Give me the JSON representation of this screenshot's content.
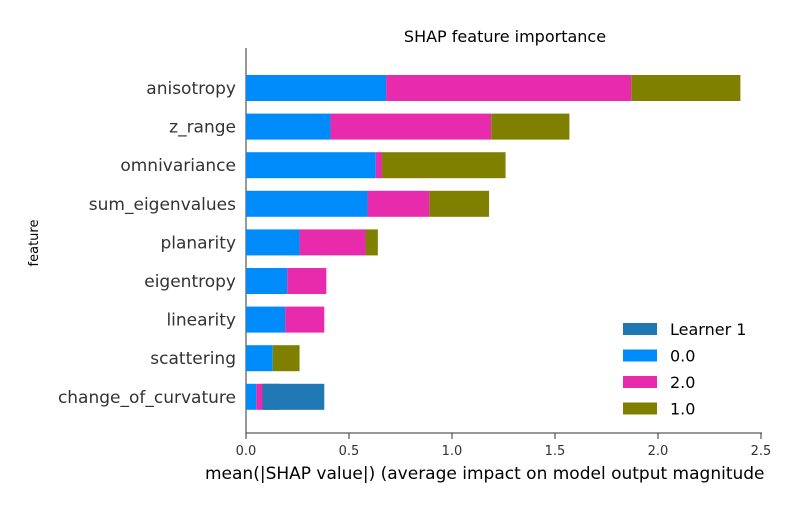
{
  "chart_data": {
    "type": "bar",
    "orientation": "horizontal",
    "stacked": true,
    "title": "SHAP feature importance",
    "xlabel": "mean(|SHAP value|) (average impact on model output magnitude",
    "ylabel": "feature",
    "xlim": [
      0,
      2.5
    ],
    "xticks": [
      "0.0",
      "0.5",
      "1.0",
      "1.5",
      "2.0",
      "2.5"
    ],
    "categories": [
      "anisotropy",
      "z_range",
      "omnivariance",
      "sum_eigenvalues",
      "planarity",
      "eigentropy",
      "linearity",
      "scattering",
      "change_of_curvature"
    ],
    "series": [
      {
        "name": "0.0",
        "color": "#008bfb",
        "values": [
          0.68,
          0.41,
          0.63,
          0.59,
          0.26,
          0.2,
          0.19,
          0.13,
          0.05
        ]
      },
      {
        "name": "2.0",
        "color": "#e82aad",
        "values": [
          1.19,
          0.78,
          0.03,
          0.3,
          0.32,
          0.19,
          0.19,
          0.0,
          0.03
        ]
      },
      {
        "name": "1.0",
        "color": "#808000",
        "values": [
          0.53,
          0.38,
          0.6,
          0.29,
          0.06,
          0.0,
          0.0,
          0.13,
          0.08
        ]
      },
      {
        "name": "Learner 1",
        "color": "#1f77b4",
        "values": [
          0,
          0,
          0,
          0,
          0,
          0,
          0,
          0,
          0.3
        ]
      }
    ],
    "legend": {
      "position": "lower-right",
      "order": [
        "Learner 1",
        "0.0",
        "2.0",
        "1.0"
      ]
    },
    "grid": false
  }
}
